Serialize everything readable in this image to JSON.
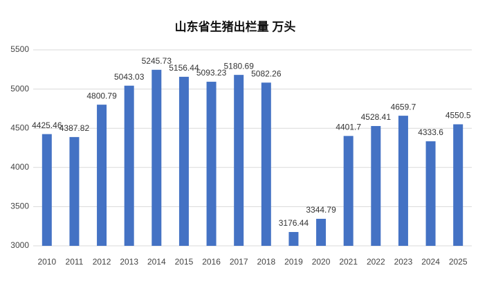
{
  "chart_data": {
    "type": "bar",
    "title": "山东省生猪出栏量 万头",
    "categories": [
      "2010",
      "2011",
      "2012",
      "2013",
      "2014",
      "2015",
      "2016",
      "2017",
      "2018",
      "2019",
      "2020",
      "2021",
      "2022",
      "2023",
      "2024",
      "2025"
    ],
    "values": [
      4425.46,
      4387.82,
      4800.79,
      5043.03,
      5245.73,
      5156.44,
      5093.23,
      5180.69,
      5082.26,
      3176.44,
      3344.79,
      4401.7,
      4528.41,
      4659.7,
      4333.6,
      4550.5
    ],
    "color": "#4472c4",
    "ylim": [
      3000,
      5500
    ],
    "yticks": [
      3000,
      3500,
      4000,
      4500,
      5000,
      5500
    ],
    "grid": true
  }
}
